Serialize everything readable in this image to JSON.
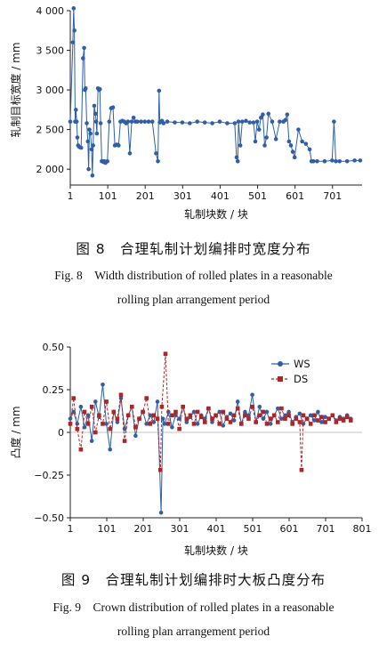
{
  "figures": [
    {
      "caption_zh": "图 8　合理轧制计划编排时宽度分布",
      "caption_en_1": "Fig. 8　Width distribution of rolled plates in a reasonable",
      "caption_en_2": "rolling plan arrangement period"
    },
    {
      "caption_zh": "图 9　合理轧制计划编排时大板凸度分布",
      "caption_en_1": "Fig. 9　Crown distribution of rolled plates in a reasonable",
      "caption_en_2": "rolling plan arrangement period"
    }
  ],
  "chart_data": [
    {
      "type": "line",
      "xlabel": "轧制块数 / 块",
      "ylabel": "轧制目标宽度 / mm",
      "xlim": [
        1,
        780
      ],
      "ylim": [
        1800,
        4000
      ],
      "xticks": [
        "1",
        "101",
        "201",
        "301",
        "401",
        "501",
        "601",
        "701"
      ],
      "yticks": [
        "2 000",
        "2 500",
        "3 000",
        "3 500",
        "4 000"
      ],
      "ytick_values": [
        2000,
        2500,
        3000,
        3500,
        4000
      ],
      "grid": false,
      "series_color": "#2e5fa8",
      "series": [
        {
          "name": "",
          "x": [
            1,
            8,
            10,
            12,
            14,
            16,
            18,
            20,
            22,
            25,
            30,
            35,
            38,
            40,
            42,
            45,
            48,
            50,
            52,
            55,
            58,
            60,
            62,
            65,
            68,
            70,
            72,
            75,
            78,
            80,
            82,
            85,
            88,
            90,
            92,
            95,
            100,
            105,
            110,
            115,
            120,
            125,
            130,
            135,
            140,
            145,
            150,
            155,
            160,
            165,
            170,
            175,
            180,
            190,
            200,
            210,
            220,
            230,
            235,
            238,
            240,
            243,
            246,
            250,
            260,
            280,
            300,
            320,
            340,
            360,
            380,
            400,
            420,
            440,
            445,
            448,
            450,
            455,
            460,
            470,
            480,
            490,
            495,
            500,
            505,
            510,
            515,
            520,
            525,
            530,
            540,
            550,
            560,
            570,
            575,
            580,
            585,
            590,
            595,
            600,
            610,
            620,
            630,
            640,
            645,
            650,
            660,
            680,
            700,
            705,
            710,
            720,
            740,
            760,
            775
          ],
          "y": [
            2600,
            3600,
            4030,
            3750,
            2600,
            2750,
            2600,
            2400,
            2300,
            2280,
            2270,
            3400,
            3530,
            3000,
            3020,
            2580,
            2350,
            2000,
            2500,
            2450,
            2250,
            1920,
            2300,
            2800,
            2700,
            2600,
            2450,
            3020,
            3000,
            3010,
            2580,
            2100,
            2100,
            2090,
            2100,
            2080,
            2100,
            2600,
            2770,
            2780,
            2300,
            2310,
            2300,
            2600,
            2610,
            2600,
            2580,
            2600,
            2200,
            2600,
            2650,
            2600,
            2600,
            2600,
            2600,
            2600,
            2600,
            2200,
            2100,
            2990,
            2590,
            2600,
            2610,
            2580,
            2600,
            2590,
            2590,
            2580,
            2600,
            2590,
            2580,
            2600,
            2580,
            2580,
            2150,
            2100,
            2600,
            2300,
            2600,
            2610,
            2590,
            2590,
            2350,
            2600,
            2500,
            2650,
            2690,
            2300,
            2400,
            2700,
            2600,
            2380,
            2600,
            2600,
            2620,
            2690,
            2350,
            2300,
            2220,
            2150,
            2500,
            2350,
            2320,
            2250,
            2100,
            2100,
            2100,
            2100,
            2110,
            2600,
            2100,
            2100,
            2100,
            2110,
            2110
          ]
        }
      ]
    },
    {
      "type": "line",
      "xlabel": "轧制块数 / 块",
      "ylabel": "凸度 / mm",
      "xlim": [
        1,
        801
      ],
      "ylim": [
        -0.5,
        0.5
      ],
      "xticks": [
        "1",
        "101",
        "201",
        "301",
        "401",
        "501",
        "601",
        "701",
        "801"
      ],
      "yticks": [
        "−0.50",
        "−0.25",
        "0",
        "0.25",
        "0.50"
      ],
      "ytick_values": [
        -0.5,
        -0.25,
        0,
        0.25,
        0.5
      ],
      "grid": false,
      "legend_position": "top-right",
      "series": [
        {
          "name": "WS",
          "color": "#2e5fa8",
          "x": [
            1,
            10,
            20,
            30,
            40,
            50,
            60,
            70,
            80,
            90,
            100,
            110,
            120,
            130,
            140,
            150,
            160,
            170,
            180,
            190,
            200,
            210,
            220,
            230,
            240,
            250,
            255,
            260,
            270,
            280,
            290,
            300,
            310,
            320,
            330,
            340,
            350,
            360,
            370,
            380,
            390,
            400,
            410,
            420,
            430,
            440,
            450,
            460,
            470,
            480,
            490,
            500,
            510,
            520,
            530,
            540,
            550,
            560,
            570,
            580,
            590,
            600,
            610,
            620,
            630,
            640,
            650,
            660,
            670,
            680,
            690,
            700,
            710,
            720,
            730,
            740,
            750,
            760,
            770
          ],
          "y": [
            0.08,
            0.12,
            0.05,
            0.15,
            0.03,
            0.1,
            -0.05,
            0.18,
            0.09,
            0.28,
            0.05,
            -0.1,
            0.12,
            0.06,
            0.2,
            0.02,
            0.1,
            0.15,
            -0.02,
            0.08,
            0.12,
            0.05,
            0.1,
            0.06,
            0.18,
            -0.47,
            0.08,
            0.05,
            0.12,
            0.03,
            0.1,
            0.08,
            0.15,
            0.06,
            0.09,
            0.12,
            0.05,
            0.1,
            0.08,
            0.14,
            0.06,
            0.1,
            0.12,
            0.04,
            0.09,
            0.11,
            0.07,
            0.18,
            0.05,
            0.12,
            0.1,
            0.22,
            0.06,
            0.15,
            0.08,
            0.12,
            0.05,
            0.1,
            0.14,
            0.08,
            0.1,
            0.12,
            0.06,
            0.09,
            0.11,
            0.05,
            0.08,
            0.1,
            0.07,
            0.12,
            0.06,
            0.09,
            0.08,
            0.1,
            0.07,
            0.09,
            0.08,
            0.1,
            0.08
          ]
        },
        {
          "name": "DS",
          "color": "#b02424",
          "x": [
            1,
            10,
            20,
            30,
            40,
            50,
            60,
            70,
            80,
            90,
            100,
            110,
            120,
            130,
            140,
            150,
            160,
            170,
            180,
            190,
            200,
            210,
            220,
            230,
            240,
            248,
            252,
            262,
            270,
            280,
            290,
            300,
            310,
            320,
            330,
            340,
            350,
            360,
            370,
            380,
            390,
            400,
            410,
            420,
            430,
            440,
            450,
            460,
            470,
            480,
            490,
            500,
            510,
            520,
            530,
            540,
            550,
            560,
            570,
            580,
            590,
            600,
            610,
            620,
            630,
            635,
            640,
            650,
            660,
            670,
            680,
            690,
            700,
            710,
            720,
            730,
            740,
            750,
            760,
            770
          ],
          "y": [
            0.05,
            0.2,
            0.02,
            -0.1,
            0.12,
            0.05,
            0.15,
            0.0,
            0.1,
            0.05,
            0.18,
            0.02,
            0.12,
            0.08,
            0.22,
            -0.05,
            0.1,
            0.15,
            0.03,
            0.08,
            0.12,
            0.2,
            0.05,
            0.1,
            0.08,
            -0.22,
            0.15,
            0.46,
            0.05,
            0.1,
            0.12,
            0.02,
            0.15,
            0.08,
            0.1,
            0.05,
            0.12,
            0.09,
            0.06,
            0.14,
            0.08,
            0.1,
            0.05,
            0.12,
            0.08,
            0.06,
            0.1,
            0.14,
            0.05,
            0.1,
            0.08,
            0.15,
            0.06,
            0.1,
            0.12,
            0.05,
            0.08,
            0.1,
            0.06,
            0.14,
            0.08,
            0.1,
            0.05,
            0.08,
            0.06,
            -0.22,
            0.1,
            0.08,
            0.05,
            0.1,
            0.07,
            0.09,
            0.06,
            0.08,
            0.1,
            0.06,
            0.08,
            0.07,
            0.09,
            0.07
          ]
        }
      ]
    }
  ]
}
